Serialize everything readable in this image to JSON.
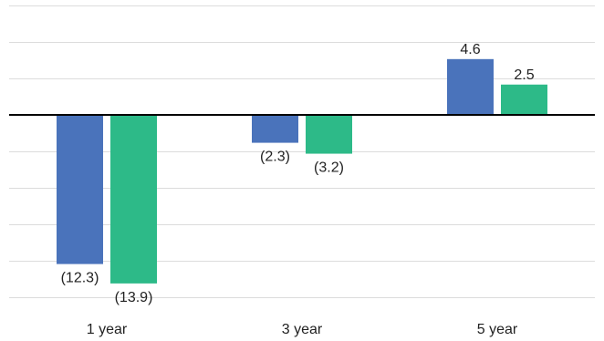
{
  "chart_data": {
    "type": "bar",
    "title": "",
    "xlabel": "",
    "ylabel": "",
    "categories": [
      "1 year",
      "3 year",
      "5 year"
    ],
    "series": [
      {
        "values": [
          -12.3,
          -2.3,
          4.6
        ],
        "labels": [
          "(12.3)",
          "(2.3)",
          "4.6"
        ],
        "color": "#4a73bb"
      },
      {
        "values": [
          -13.9,
          -3.2,
          2.5
        ],
        "labels": [
          "(13.9)",
          "(3.2)",
          "2.5"
        ],
        "color": "#2dba88"
      }
    ],
    "ylim": [
      -15,
      9
    ],
    "gridline_step": 3,
    "grid": true,
    "legend": "none",
    "y_tick_labels_shown": false
  }
}
